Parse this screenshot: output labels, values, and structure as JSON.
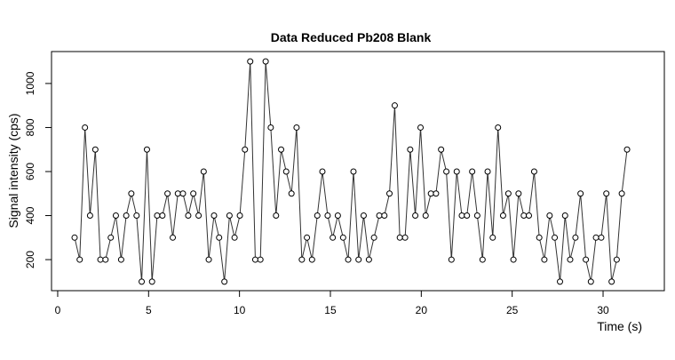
{
  "chart_data": {
    "type": "line_points",
    "title": "Data Reduced Pb208 Blank",
    "x_label": "Time (s)",
    "y_label": "Signal intensity (cps)",
    "x": [
      0.93,
      1.21,
      1.5,
      1.78,
      2.07,
      2.35,
      2.63,
      2.92,
      3.2,
      3.49,
      3.77,
      4.05,
      4.34,
      4.62,
      4.91,
      5.19,
      5.47,
      5.76,
      6.04,
      6.33,
      6.61,
      6.89,
      7.18,
      7.46,
      7.75,
      8.03,
      8.31,
      8.6,
      8.88,
      9.17,
      9.45,
      9.73,
      10.02,
      10.3,
      10.59,
      10.87,
      11.15,
      11.44,
      11.72,
      12.01,
      12.29,
      12.57,
      12.86,
      13.14,
      13.43,
      13.71,
      13.99,
      14.28,
      14.56,
      14.85,
      15.13,
      15.41,
      15.7,
      15.98,
      16.27,
      16.55,
      16.83,
      17.12,
      17.4,
      17.69,
      17.97,
      18.25,
      18.54,
      18.82,
      19.11,
      19.39,
      19.67,
      19.96,
      20.24,
      20.53,
      20.81,
      21.09,
      21.38,
      21.66,
      21.95,
      22.23,
      22.51,
      22.8,
      23.08,
      23.37,
      23.65,
      23.93,
      24.22,
      24.5,
      24.79,
      25.07,
      25.35,
      25.64,
      25.92,
      26.21,
      26.49,
      26.77,
      27.06,
      27.34,
      27.63,
      27.91,
      28.19,
      28.48,
      28.76,
      29.05,
      29.33,
      29.61,
      29.9,
      30.18,
      30.47,
      30.75,
      31.03,
      31.32
    ],
    "values": [
      300,
      200,
      800,
      400,
      700,
      200,
      200,
      300,
      400,
      200,
      400,
      500,
      400,
      100,
      700,
      100,
      400,
      400,
      500,
      300,
      500,
      500,
      400,
      500,
      400,
      600,
      200,
      400,
      300,
      100,
      400,
      300,
      400,
      700,
      1100,
      200,
      200,
      1100,
      800,
      400,
      700,
      600,
      500,
      800,
      200,
      300,
      200,
      400,
      600,
      400,
      300,
      400,
      300,
      200,
      600,
      200,
      400,
      200,
      300,
      400,
      400,
      500,
      900,
      300,
      300,
      700,
      400,
      800,
      400,
      500,
      500,
      700,
      600,
      200,
      600,
      400,
      400,
      600,
      400,
      200,
      600,
      300,
      800,
      400,
      500,
      200,
      500,
      400,
      400,
      600,
      300,
      200,
      400,
      300,
      100,
      400,
      200,
      300,
      500,
      200,
      100,
      300,
      300,
      500,
      100,
      200,
      500,
      700
    ],
    "color": "#333333",
    "xlim": [
      -0.34,
      33.37
    ],
    "ylim": [
      59,
      1145
    ],
    "xticks": [
      0,
      5,
      10,
      15,
      20,
      25,
      30
    ],
    "yticks": [
      200,
      400,
      600,
      800,
      1000
    ]
  }
}
